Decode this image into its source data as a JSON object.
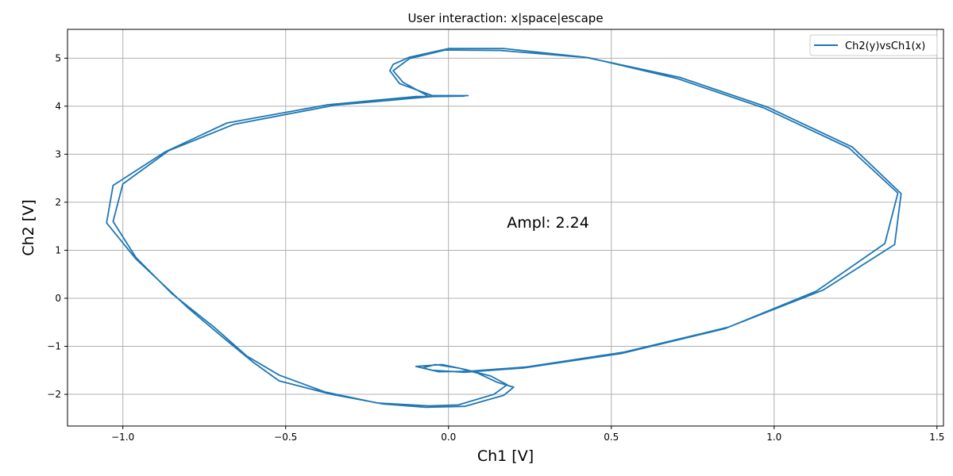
{
  "chart_data": {
    "type": "line",
    "title": "User interaction: x|space|escape",
    "xlabel": "Ch1 [V]",
    "ylabel": "Ch2 [V]",
    "xlim": [
      -1.17,
      1.52
    ],
    "ylim": [
      -2.66,
      5.6
    ],
    "xticks": [
      -1.0,
      -0.5,
      0.0,
      0.5,
      1.0,
      1.5
    ],
    "xtick_labels": [
      "−1.0",
      "−0.5",
      "0.0",
      "0.5",
      "1.0",
      "1.5"
    ],
    "yticks": [
      -2,
      -1,
      0,
      1,
      2,
      3,
      4,
      5
    ],
    "ytick_labels": [
      "−2",
      "−1",
      "0",
      "1",
      "2",
      "3",
      "4",
      "5"
    ],
    "grid": true,
    "legend_position": "top-right",
    "annotation": "Ampl: 2.24",
    "color": "#1f77b4",
    "series": [
      {
        "name": "Ch2(y)vsCh1(x)",
        "points": [
          [
            0.06,
            4.22
          ],
          [
            -0.05,
            4.22
          ],
          [
            -0.15,
            4.47
          ],
          [
            -0.18,
            4.74
          ],
          [
            -0.17,
            4.87
          ],
          [
            -0.12,
            5.02
          ],
          [
            0.0,
            5.2
          ],
          [
            0.17,
            5.2
          ],
          [
            0.42,
            5.02
          ],
          [
            0.71,
            4.6
          ],
          [
            0.98,
            3.98
          ],
          [
            1.24,
            3.15
          ],
          [
            1.39,
            2.18
          ],
          [
            1.37,
            1.12
          ],
          [
            1.15,
            0.17
          ],
          [
            0.86,
            -0.6
          ],
          [
            0.54,
            -1.12
          ],
          [
            0.24,
            -1.43
          ],
          [
            0.06,
            -1.52
          ],
          [
            -0.03,
            -1.53
          ],
          [
            -0.08,
            -1.45
          ],
          [
            -0.04,
            -1.38
          ],
          [
            0.03,
            -1.45
          ],
          [
            0.09,
            -1.56
          ],
          [
            0.15,
            -1.75
          ],
          [
            0.2,
            -1.85
          ],
          [
            0.17,
            -2.02
          ],
          [
            0.05,
            -2.25
          ],
          [
            -0.07,
            -2.27
          ],
          [
            -0.2,
            -2.2
          ],
          [
            -0.36,
            -2.0
          ],
          [
            -0.52,
            -1.72
          ],
          [
            -0.6,
            -1.33
          ],
          [
            -0.69,
            -0.83
          ],
          [
            -0.8,
            -0.2
          ],
          [
            -0.96,
            0.82
          ],
          [
            -1.05,
            1.57
          ],
          [
            -1.03,
            2.35
          ],
          [
            -0.87,
            3.05
          ],
          [
            -0.68,
            3.65
          ],
          [
            -0.37,
            4.03
          ],
          [
            -0.1,
            4.2
          ],
          [
            0.06,
            4.22
          ],
          [
            -0.06,
            4.2
          ],
          [
            -0.14,
            4.5
          ],
          [
            -0.17,
            4.74
          ],
          [
            -0.12,
            4.99
          ],
          [
            -0.01,
            5.17
          ],
          [
            0.16,
            5.16
          ],
          [
            0.43,
            5.01
          ],
          [
            0.7,
            4.58
          ],
          [
            0.97,
            3.96
          ],
          [
            1.23,
            3.13
          ],
          [
            1.38,
            2.19
          ],
          [
            1.34,
            1.14
          ],
          [
            1.13,
            0.15
          ],
          [
            0.85,
            -0.63
          ],
          [
            0.53,
            -1.15
          ],
          [
            0.23,
            -1.45
          ],
          [
            0.05,
            -1.54
          ],
          [
            -0.05,
            -1.5
          ],
          [
            -0.1,
            -1.42
          ],
          [
            -0.02,
            -1.38
          ],
          [
            0.05,
            -1.48
          ],
          [
            0.13,
            -1.62
          ],
          [
            0.18,
            -1.8
          ],
          [
            0.14,
            -2.0
          ],
          [
            0.03,
            -2.22
          ],
          [
            -0.06,
            -2.24
          ],
          [
            -0.22,
            -2.18
          ],
          [
            -0.38,
            -1.95
          ],
          [
            -0.52,
            -1.6
          ],
          [
            -0.62,
            -1.2
          ],
          [
            -0.72,
            -0.6
          ],
          [
            -0.85,
            0.1
          ],
          [
            -0.96,
            0.85
          ],
          [
            -1.03,
            1.6
          ],
          [
            -1.0,
            2.38
          ],
          [
            -0.86,
            3.07
          ],
          [
            -0.66,
            3.62
          ],
          [
            -0.35,
            4.02
          ],
          [
            -0.05,
            4.2
          ],
          [
            0.05,
            4.21
          ]
        ]
      }
    ]
  }
}
